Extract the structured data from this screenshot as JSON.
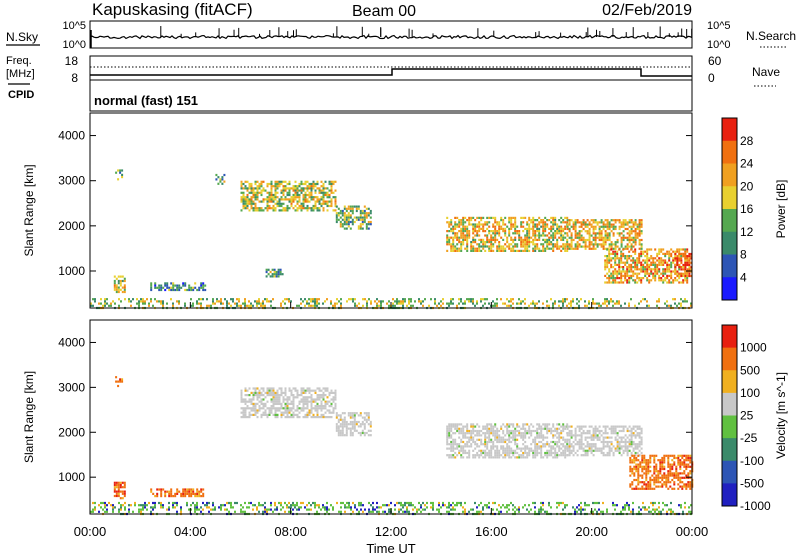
{
  "header": {
    "station": "Kapuskasing (fitACF)",
    "beam": "Beam 00",
    "date": "02/Feb/2019"
  },
  "top_panels": {
    "nsky_label": "N.Sky",
    "nsky_tick_top": "10^5",
    "nsky_tick_bottom": "10^0",
    "nsearch_label": "N.Search",
    "nsearch_tick_top": "10^5",
    "nsearch_tick_bottom": "10^0",
    "freq_label_line1": "Freq.",
    "freq_label_line2": "[MHz]",
    "freq_tick_top": "18",
    "freq_tick_bottom": "8",
    "nave_label": "Nave",
    "nave_tick_top": "60",
    "nave_tick_bottom": "0",
    "cpid_label": "CPID",
    "cpid_value": "normal (fast) 151"
  },
  "chart_data": [
    {
      "type": "heatmap",
      "panel": "power",
      "ylabel": "Slant Range [km]",
      "xlabel": "Time UT",
      "x_ticks": [
        "00:00",
        "04:00",
        "08:00",
        "12:00",
        "16:00",
        "20:00",
        "00:00"
      ],
      "xlim_hours": [
        0,
        24
      ],
      "y_ticks": [
        1000,
        2000,
        3000,
        4000
      ],
      "ylim": [
        180,
        4500
      ],
      "colorbar": {
        "label": "Power [dB]",
        "ticks": [
          "4",
          "8",
          "12",
          "16",
          "20",
          "24",
          "28"
        ],
        "range": [
          0,
          30
        ],
        "colors": [
          "#1a1aff",
          "#2d55b5",
          "#3a8a6a",
          "#55a850",
          "#e8d030",
          "#f0a020",
          "#f07010",
          "#e82010"
        ]
      },
      "echo_regions": [
        {
          "t_start": 1.0,
          "t_end": 1.25,
          "r_min": 3050,
          "r_max": 3250,
          "level": 0.35
        },
        {
          "t_start": 0.95,
          "t_end": 1.35,
          "r_min": 550,
          "r_max": 900,
          "level": 0.55
        },
        {
          "t_start": 2.4,
          "t_end": 4.6,
          "r_min": 600,
          "r_max": 750,
          "level": 0.3
        },
        {
          "t_start": 5.0,
          "t_end": 5.4,
          "r_min": 2950,
          "r_max": 3150,
          "level": 0.4
        },
        {
          "t_start": 6.0,
          "t_end": 9.8,
          "r_min": 2350,
          "r_max": 3000,
          "level": 0.55
        },
        {
          "t_start": 9.8,
          "t_end": 11.2,
          "r_min": 1950,
          "r_max": 2450,
          "level": 0.45
        },
        {
          "t_start": 7.0,
          "t_end": 7.7,
          "r_min": 900,
          "r_max": 1050,
          "level": 0.4
        },
        {
          "t_start": 14.2,
          "t_end": 19.0,
          "r_min": 1450,
          "r_max": 2200,
          "level": 0.6
        },
        {
          "t_start": 19.0,
          "t_end": 22.0,
          "r_min": 1500,
          "r_max": 2150,
          "level": 0.65
        },
        {
          "t_start": 20.5,
          "t_end": 23.8,
          "r_min": 750,
          "r_max": 1500,
          "level": 0.7
        },
        {
          "t_start": 23.3,
          "t_end": 24.0,
          "r_min": 900,
          "r_max": 1400,
          "level": 0.9
        },
        {
          "t_start": 0.0,
          "t_end": 24.0,
          "r_min": 180,
          "r_max": 400,
          "level": 0.5
        }
      ]
    },
    {
      "type": "heatmap",
      "panel": "velocity",
      "ylabel": "Slant Range [km]",
      "xlabel": "Time UT",
      "x_ticks": [
        "00:00",
        "04:00",
        "08:00",
        "12:00",
        "16:00",
        "20:00",
        "00:00"
      ],
      "xlim_hours": [
        0,
        24
      ],
      "y_ticks": [
        1000,
        2000,
        3000,
        4000
      ],
      "ylim": [
        180,
        4500
      ],
      "colorbar": {
        "label": "Velocity [m s^-1]",
        "ticks": [
          "1000",
          "500",
          "100",
          "25",
          "-25",
          "-100",
          "-500",
          "-1000"
        ],
        "colors": [
          "#2020c0",
          "#2d55b5",
          "#3a8a6a",
          "#60c040",
          "#c8c8c8",
          "#f0b020",
          "#f07010",
          "#e82010"
        ]
      },
      "echo_regions": [
        {
          "t_start": 1.0,
          "t_end": 1.25,
          "r_min": 3050,
          "r_max": 3250,
          "level": -0.5
        },
        {
          "t_start": 0.95,
          "t_end": 1.35,
          "r_min": 550,
          "r_max": 900,
          "level": -0.7
        },
        {
          "t_start": 2.4,
          "t_end": 4.6,
          "r_min": 600,
          "r_max": 750,
          "level": -0.7
        },
        {
          "t_start": 6.0,
          "t_end": 9.8,
          "r_min": 2350,
          "r_max": 3000,
          "level": 0.0
        },
        {
          "t_start": 9.8,
          "t_end": 11.2,
          "r_min": 1950,
          "r_max": 2450,
          "level": 0.0
        },
        {
          "t_start": 14.2,
          "t_end": 19.0,
          "r_min": 1450,
          "r_max": 2200,
          "level": 0.0
        },
        {
          "t_start": 19.0,
          "t_end": 22.0,
          "r_min": 1500,
          "r_max": 2150,
          "level": 0.0
        },
        {
          "t_start": 21.5,
          "t_end": 24.0,
          "r_min": 750,
          "r_max": 1500,
          "level": -0.7
        },
        {
          "t_start": 0.0,
          "t_end": 24.0,
          "r_min": 180,
          "r_max": 450,
          "level": 0.45
        }
      ]
    }
  ]
}
